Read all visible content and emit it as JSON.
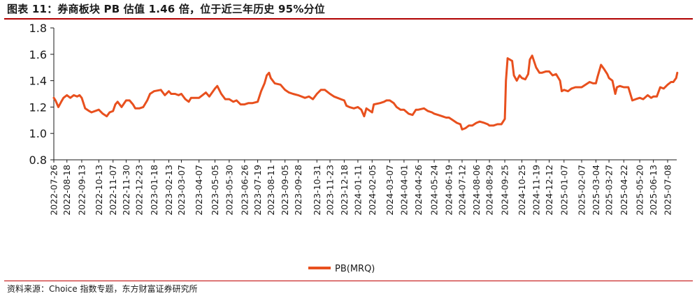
{
  "title": "图表 11：券商板块 PB 估值 1.46 倍，位于近三年历史 95%分位",
  "source": "资料来源：Choice 指数专题，东方财富证券研究所",
  "colors": {
    "series": "#e8501e",
    "rule": "#b00000",
    "axis": "#1a1a1a"
  },
  "chart_data": {
    "type": "line",
    "ylim": [
      0.8,
      1.8
    ],
    "y_ticks": [
      "1.8",
      "1.6",
      "1.4",
      "1.2",
      "1.0",
      "0.8"
    ],
    "x_ticks": [
      "2022-07-26",
      "2022-08-18",
      "2022-09-13",
      "2022-10-13",
      "2022-11-07",
      "2022-11-30",
      "2022-12-23",
      "2023-01-18",
      "2023-02-13",
      "2023-03-07",
      "2023-04-07",
      "2023-05-05",
      "2023-05-30",
      "2023-06-26",
      "2023-07-19",
      "2023-08-11",
      "2023-09-05",
      "2023-09-28",
      "2023-10-31",
      "2023-11-23",
      "2023-12-18",
      "2024-01-11",
      "2024-02-05",
      "2024-03-07",
      "2024-04-01",
      "2024-04-26",
      "2024-05-24",
      "2024-06-19",
      "2024-07-12",
      "2024-08-06",
      "2024-08-29",
      "2024-09-25",
      "2024-10-25",
      "2024-11-19",
      "2024-12-12",
      "2025-01-07",
      "2025-02-07",
      "2025-03-04",
      "2025-03-27",
      "2025-04-22",
      "2025-05-20",
      "2025-06-13",
      "2025-07-08"
    ],
    "series": [
      {
        "name": "PB(MRQ)",
        "values": [
          [
            "2022-07-26",
            1.27
          ],
          [
            "2022-07-29",
            1.25
          ],
          [
            "2022-08-03",
            1.2
          ],
          [
            "2022-08-08",
            1.24
          ],
          [
            "2022-08-12",
            1.27
          ],
          [
            "2022-08-18",
            1.29
          ],
          [
            "2022-08-24",
            1.27
          ],
          [
            "2022-08-30",
            1.29
          ],
          [
            "2022-09-05",
            1.28
          ],
          [
            "2022-09-09",
            1.29
          ],
          [
            "2022-09-13",
            1.27
          ],
          [
            "2022-09-19",
            1.19
          ],
          [
            "2022-09-26",
            1.17
          ],
          [
            "2022-09-30",
            1.16
          ],
          [
            "2022-10-13",
            1.18
          ],
          [
            "2022-10-20",
            1.15
          ],
          [
            "2022-10-27",
            1.13
          ],
          [
            "2022-11-01",
            1.16
          ],
          [
            "2022-11-07",
            1.17
          ],
          [
            "2022-11-11",
            1.22
          ],
          [
            "2022-11-15",
            1.24
          ],
          [
            "2022-11-22",
            1.2
          ],
          [
            "2022-11-30",
            1.25
          ],
          [
            "2022-12-06",
            1.25
          ],
          [
            "2022-12-12",
            1.22
          ],
          [
            "2022-12-16",
            1.19
          ],
          [
            "2022-12-23",
            1.19
          ],
          [
            "2022-12-30",
            1.2
          ],
          [
            "2023-01-06",
            1.25
          ],
          [
            "2023-01-11",
            1.3
          ],
          [
            "2023-01-18",
            1.32
          ],
          [
            "2023-01-30",
            1.33
          ],
          [
            "2023-02-06",
            1.29
          ],
          [
            "2023-02-13",
            1.32
          ],
          [
            "2023-02-17",
            1.3
          ],
          [
            "2023-02-24",
            1.3
          ],
          [
            "2023-03-02",
            1.29
          ],
          [
            "2023-03-07",
            1.3
          ],
          [
            "2023-03-14",
            1.26
          ],
          [
            "2023-03-20",
            1.24
          ],
          [
            "2023-03-24",
            1.27
          ],
          [
            "2023-04-03",
            1.27
          ],
          [
            "2023-04-07",
            1.27
          ],
          [
            "2023-04-13",
            1.29
          ],
          [
            "2023-04-19",
            1.31
          ],
          [
            "2023-04-25",
            1.28
          ],
          [
            "2023-05-05",
            1.34
          ],
          [
            "2023-05-09",
            1.36
          ],
          [
            "2023-05-16",
            1.3
          ],
          [
            "2023-05-23",
            1.26
          ],
          [
            "2023-05-30",
            1.26
          ],
          [
            "2023-06-06",
            1.24
          ],
          [
            "2023-06-12",
            1.25
          ],
          [
            "2023-06-19",
            1.22
          ],
          [
            "2023-06-26",
            1.22
          ],
          [
            "2023-07-03",
            1.23
          ],
          [
            "2023-07-10",
            1.23
          ],
          [
            "2023-07-19",
            1.24
          ],
          [
            "2023-07-25",
            1.32
          ],
          [
            "2023-07-31",
            1.38
          ],
          [
            "2023-08-04",
            1.44
          ],
          [
            "2023-08-08",
            1.46
          ],
          [
            "2023-08-11",
            1.42
          ],
          [
            "2023-08-18",
            1.38
          ],
          [
            "2023-08-28",
            1.37
          ],
          [
            "2023-09-05",
            1.33
          ],
          [
            "2023-09-12",
            1.31
          ],
          [
            "2023-09-19",
            1.3
          ],
          [
            "2023-09-28",
            1.29
          ],
          [
            "2023-10-10",
            1.27
          ],
          [
            "2023-10-17",
            1.28
          ],
          [
            "2023-10-24",
            1.26
          ],
          [
            "2023-10-31",
            1.3
          ],
          [
            "2023-11-07",
            1.33
          ],
          [
            "2023-11-14",
            1.33
          ],
          [
            "2023-11-23",
            1.3
          ],
          [
            "2023-11-30",
            1.28
          ],
          [
            "2023-12-06",
            1.27
          ],
          [
            "2023-12-12",
            1.26
          ],
          [
            "2023-12-18",
            1.25
          ],
          [
            "2023-12-22",
            1.21
          ],
          [
            "2023-12-27",
            1.2
          ],
          [
            "2024-01-04",
            1.19
          ],
          [
            "2024-01-11",
            1.2
          ],
          [
            "2024-01-17",
            1.18
          ],
          [
            "2024-01-22",
            1.13
          ],
          [
            "2024-01-26",
            1.19
          ],
          [
            "2024-02-05",
            1.16
          ],
          [
            "2024-02-08",
            1.22
          ],
          [
            "2024-02-19",
            1.23
          ],
          [
            "2024-02-26",
            1.24
          ],
          [
            "2024-03-01",
            1.25
          ],
          [
            "2024-03-07",
            1.25
          ],
          [
            "2024-03-14",
            1.23
          ],
          [
            "2024-03-19",
            1.2
          ],
          [
            "2024-03-26",
            1.18
          ],
          [
            "2024-04-01",
            1.18
          ],
          [
            "2024-04-09",
            1.15
          ],
          [
            "2024-04-16",
            1.14
          ],
          [
            "2024-04-22",
            1.18
          ],
          [
            "2024-04-26",
            1.18
          ],
          [
            "2024-05-06",
            1.19
          ],
          [
            "2024-05-13",
            1.17
          ],
          [
            "2024-05-20",
            1.16
          ],
          [
            "2024-05-24",
            1.15
          ],
          [
            "2024-05-31",
            1.14
          ],
          [
            "2024-06-07",
            1.13
          ],
          [
            "2024-06-14",
            1.12
          ],
          [
            "2024-06-19",
            1.12
          ],
          [
            "2024-06-26",
            1.1
          ],
          [
            "2024-07-03",
            1.08
          ],
          [
            "2024-07-09",
            1.07
          ],
          [
            "2024-07-12",
            1.03
          ],
          [
            "2024-07-18",
            1.04
          ],
          [
            "2024-07-24",
            1.06
          ],
          [
            "2024-07-30",
            1.06
          ],
          [
            "2024-08-06",
            1.08
          ],
          [
            "2024-08-12",
            1.09
          ],
          [
            "2024-08-20",
            1.08
          ],
          [
            "2024-08-26",
            1.07
          ],
          [
            "2024-08-29",
            1.06
          ],
          [
            "2024-09-05",
            1.06
          ],
          [
            "2024-09-12",
            1.07
          ],
          [
            "2024-09-19",
            1.07
          ],
          [
            "2024-09-25",
            1.11
          ],
          [
            "2024-09-26",
            1.25
          ],
          [
            "2024-09-27",
            1.4
          ],
          [
            "2024-09-30",
            1.57
          ],
          [
            "2024-10-08",
            1.55
          ],
          [
            "2024-10-11",
            1.44
          ],
          [
            "2024-10-16",
            1.4
          ],
          [
            "2024-10-21",
            1.44
          ],
          [
            "2024-10-25",
            1.42
          ],
          [
            "2024-10-31",
            1.41
          ],
          [
            "2024-11-05",
            1.45
          ],
          [
            "2024-11-08",
            1.56
          ],
          [
            "2024-11-12",
            1.59
          ],
          [
            "2024-11-19",
            1.5
          ],
          [
            "2024-11-25",
            1.46
          ],
          [
            "2024-11-29",
            1.46
          ],
          [
            "2024-12-06",
            1.47
          ],
          [
            "2024-12-12",
            1.47
          ],
          [
            "2024-12-18",
            1.44
          ],
          [
            "2024-12-24",
            1.45
          ],
          [
            "2024-12-31",
            1.4
          ],
          [
            "2025-01-03",
            1.32
          ],
          [
            "2025-01-07",
            1.33
          ],
          [
            "2025-01-14",
            1.32
          ],
          [
            "2025-01-20",
            1.34
          ],
          [
            "2025-01-27",
            1.35
          ],
          [
            "2025-02-07",
            1.35
          ],
          [
            "2025-02-14",
            1.37
          ],
          [
            "2025-02-21",
            1.39
          ],
          [
            "2025-02-27",
            1.38
          ],
          [
            "2025-03-04",
            1.38
          ],
          [
            "2025-03-07",
            1.43
          ],
          [
            "2025-03-13",
            1.52
          ],
          [
            "2025-03-18",
            1.49
          ],
          [
            "2025-03-24",
            1.45
          ],
          [
            "2025-03-27",
            1.42
          ],
          [
            "2025-04-02",
            1.4
          ],
          [
            "2025-04-07",
            1.3
          ],
          [
            "2025-04-10",
            1.35
          ],
          [
            "2025-04-15",
            1.36
          ],
          [
            "2025-04-22",
            1.35
          ],
          [
            "2025-04-25",
            1.35
          ],
          [
            "2025-04-30",
            1.35
          ],
          [
            "2025-05-07",
            1.25
          ],
          [
            "2025-05-13",
            1.26
          ],
          [
            "2025-05-20",
            1.27
          ],
          [
            "2025-05-26",
            1.26
          ],
          [
            "2025-06-03",
            1.29
          ],
          [
            "2025-06-09",
            1.27
          ],
          [
            "2025-06-13",
            1.28
          ],
          [
            "2025-06-19",
            1.28
          ],
          [
            "2025-06-25",
            1.35
          ],
          [
            "2025-07-01",
            1.34
          ],
          [
            "2025-07-08",
            1.37
          ],
          [
            "2025-07-14",
            1.39
          ],
          [
            "2025-07-18",
            1.39
          ],
          [
            "2025-07-23",
            1.42
          ],
          [
            "2025-07-25",
            1.46
          ]
        ]
      }
    ],
    "legend_position": "bottom-center",
    "grid": false
  }
}
